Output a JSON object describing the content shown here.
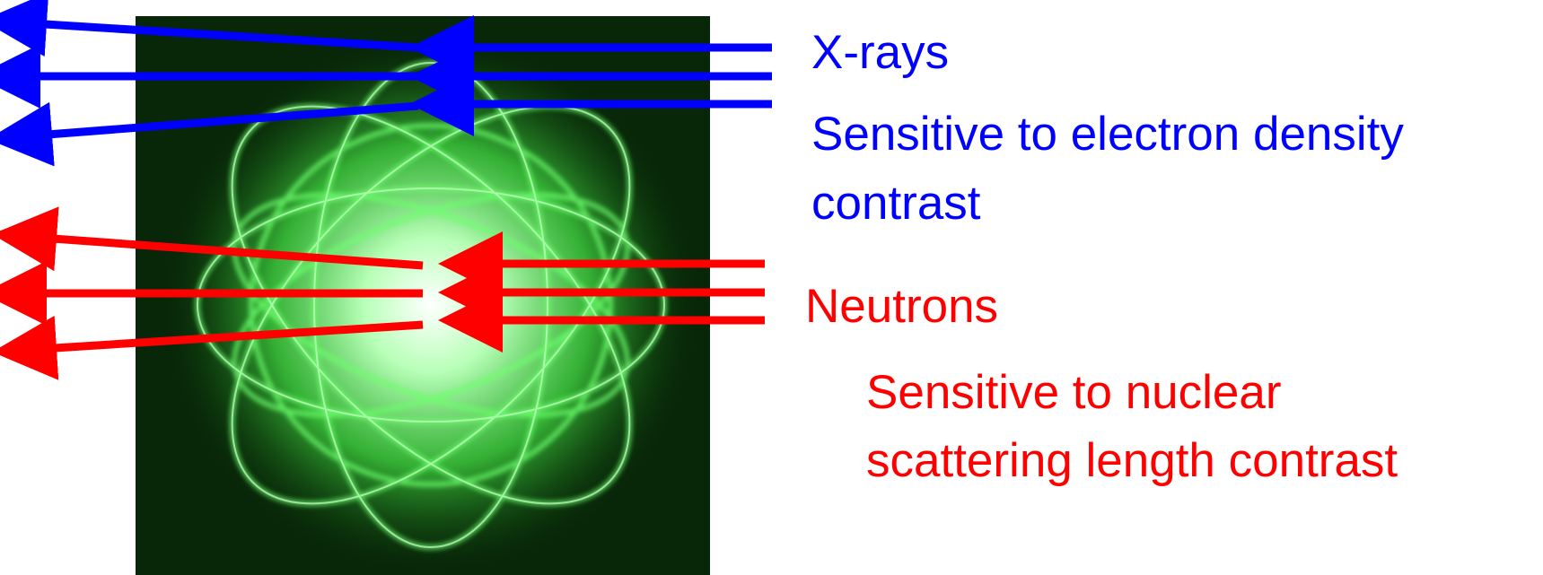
{
  "xray": {
    "label": "X-rays",
    "description": [
      "Sensitive to electron density",
      "contrast"
    ]
  },
  "neutron": {
    "label": "Neutrons",
    "description": [
      "Sensitive to nuclear",
      "scattering length contrast"
    ]
  }
}
